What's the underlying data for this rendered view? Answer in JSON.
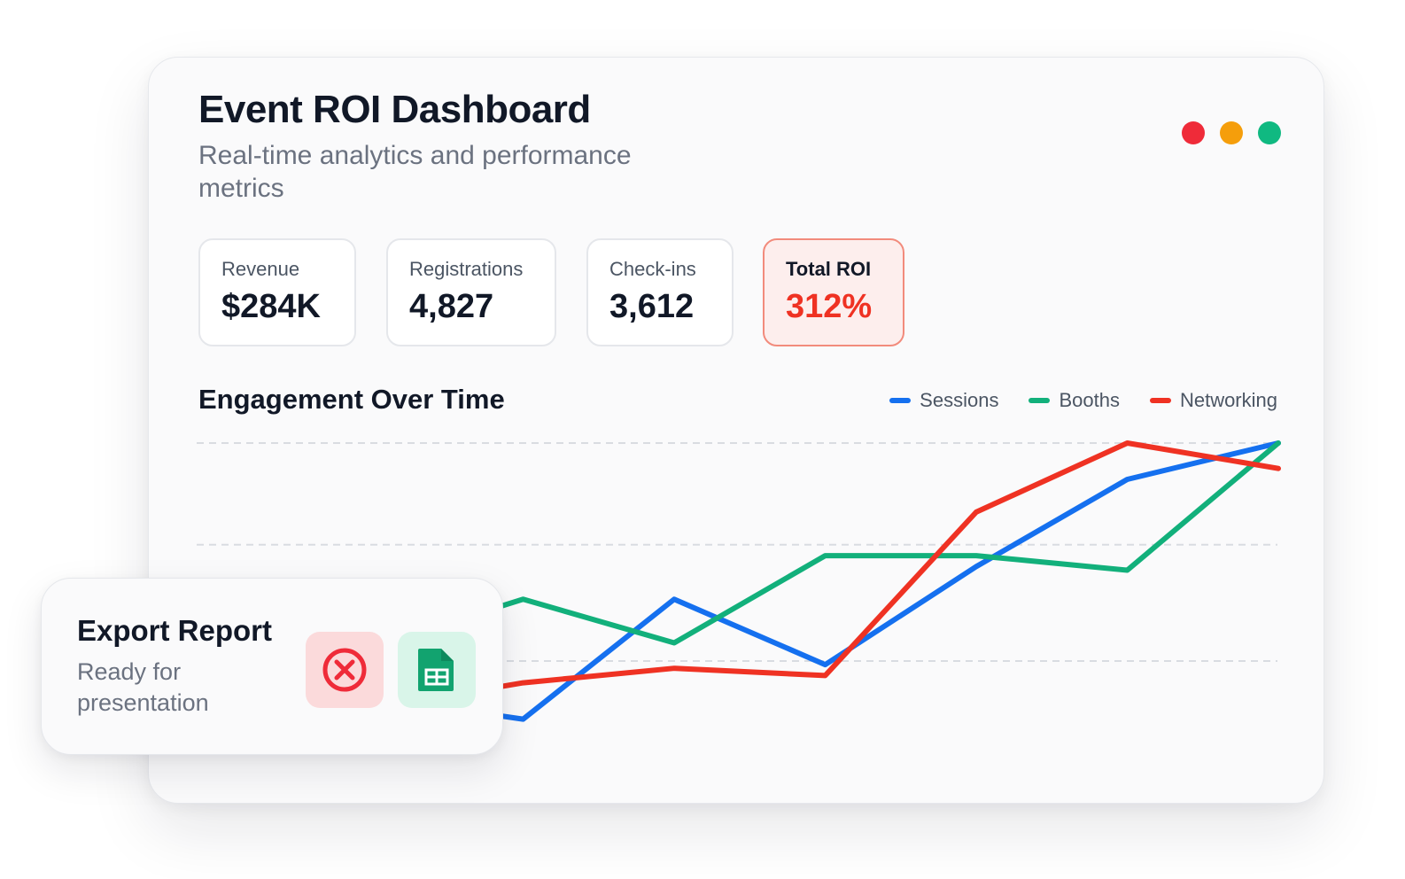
{
  "header": {
    "title": "Event ROI Dashboard",
    "subtitle": "Real-time analytics and performance metrics"
  },
  "window_controls": [
    "red-dot",
    "orange-dot",
    "green-dot"
  ],
  "stats": [
    {
      "label": "Revenue",
      "value": "$284K"
    },
    {
      "label": "Registrations",
      "value": "4,827"
    },
    {
      "label": "Check-ins",
      "value": "3,612"
    },
    {
      "label": "Total ROI",
      "value": "312%"
    }
  ],
  "colors": {
    "accent_red": "#ef3223",
    "sessions": "#1570ef",
    "booths": "#12b07b",
    "networking": "#ef3223"
  },
  "chart_section": {
    "title": "Engagement Over Time"
  },
  "chart_data": {
    "type": "line",
    "title": "Engagement Over Time",
    "xlabel": "",
    "ylabel": "",
    "grid": true,
    "legend_position": "top-right",
    "x": [
      0,
      1,
      2,
      3,
      4,
      5,
      6
    ],
    "ylim": [
      0,
      100
    ],
    "series": [
      {
        "name": "Sessions",
        "color": "#1570ef",
        "values": [
          30,
          24,
          57,
          39,
          66,
          90,
          100
        ]
      },
      {
        "name": "Booths",
        "color": "#12b07b",
        "values": [
          44,
          57,
          45,
          69,
          69,
          65,
          100
        ]
      },
      {
        "name": "Networking",
        "color": "#ef3223",
        "values": [
          27,
          34,
          38,
          36,
          81,
          100,
          93
        ]
      }
    ]
  },
  "export": {
    "title": "Export Report",
    "subtitle": "Ready for presentation",
    "actions": [
      {
        "icon": "close-circle-icon",
        "color": "#ef2b39"
      },
      {
        "icon": "spreadsheet-icon",
        "color": "#12a36f"
      }
    ]
  }
}
